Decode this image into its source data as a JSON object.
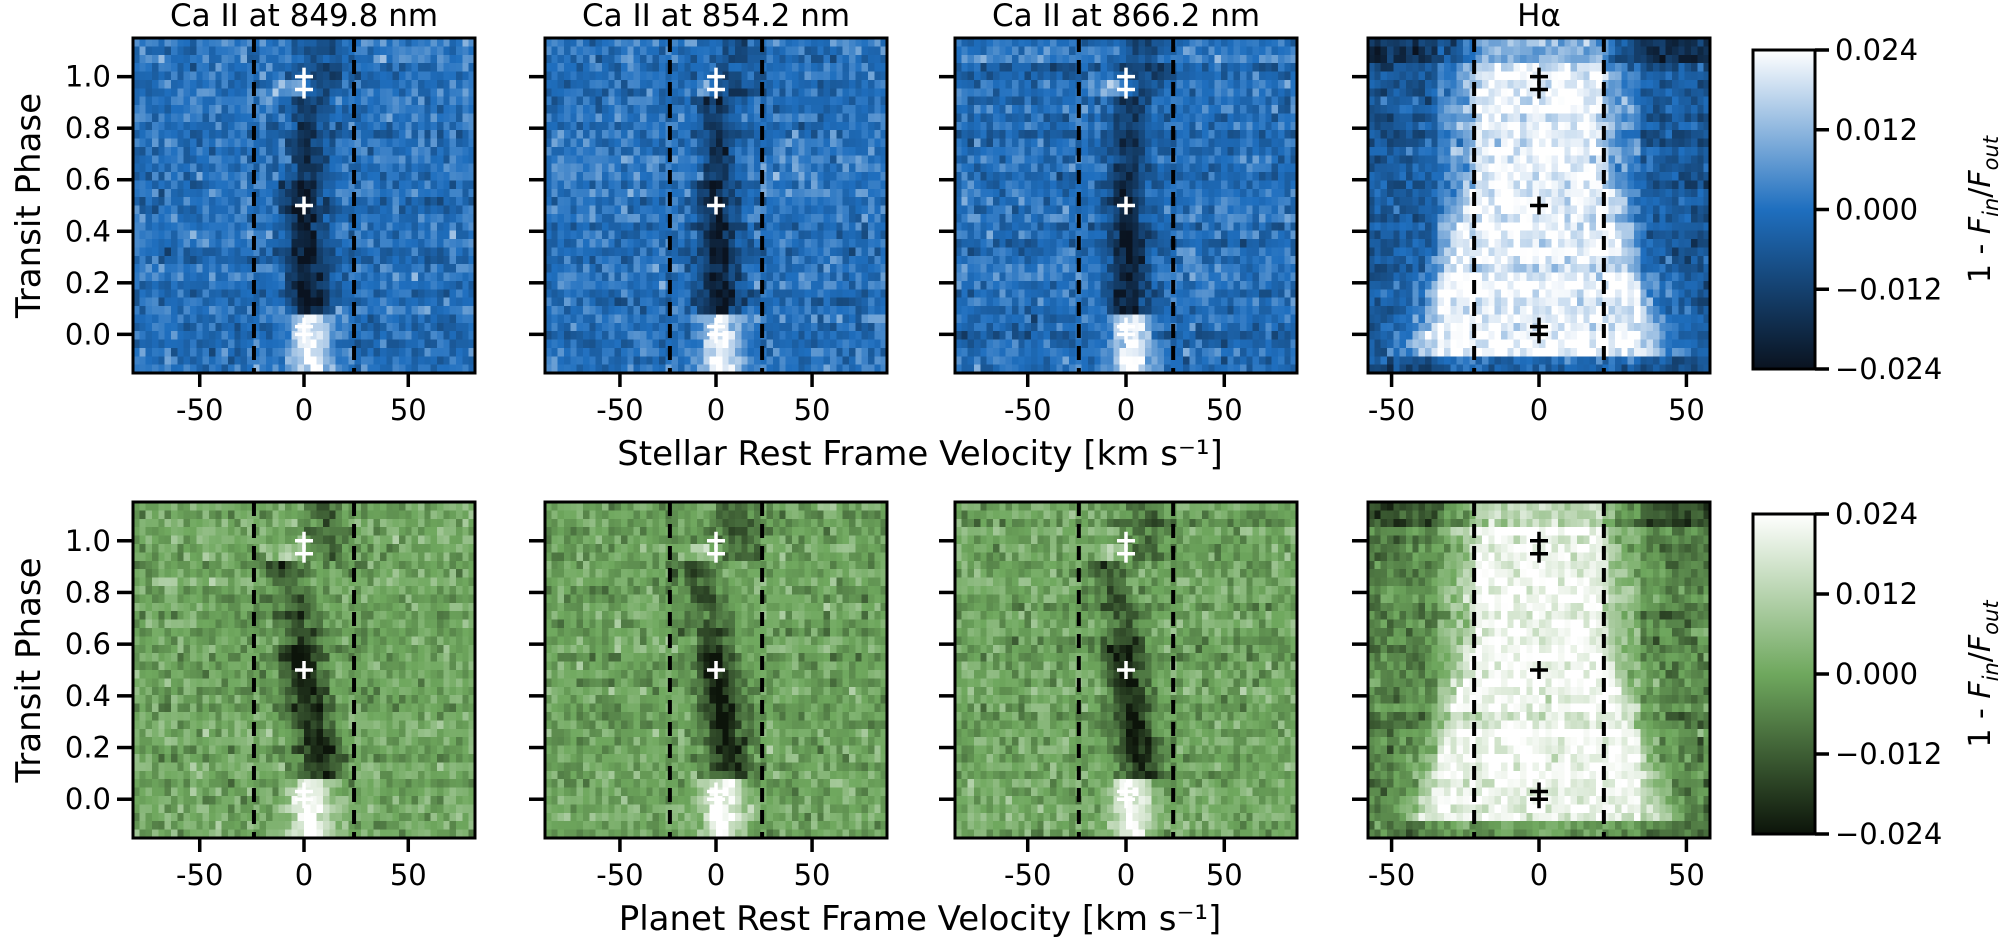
{
  "figure": {
    "colorbar_label": "1 - F_in/F_out",
    "colorbar_label_parts": {
      "prefix": "1 - ",
      "f_in": "F",
      "in_sub": "in",
      "slash": "/",
      "f_out": "F",
      "out_sub": "out"
    }
  },
  "chart_data": [
    {
      "type": "heatmap",
      "row": "stellar",
      "xlabel": "Stellar Rest Frame Velocity [km s⁻¹]",
      "ylabel": "Transit Phase",
      "colormap": "blues",
      "cmap_colors": [
        "#0a1320",
        "#1f6fbf",
        "#ffffff"
      ],
      "clim": [
        -0.024,
        0.024
      ],
      "colorbar_ticks": [
        "0.024",
        "0.012",
        "0.000",
        "−0.012",
        "−0.024"
      ],
      "yticks": [
        "0.0",
        "0.2",
        "0.4",
        "0.6",
        "0.8",
        "1.0"
      ],
      "panels": [
        {
          "title": "Ca II at 849.8 nm",
          "xlim": [
            -82,
            82
          ],
          "xticks": [
            "-50",
            "0",
            "50"
          ],
          "dashed_lines_x": [
            -24,
            24
          ],
          "marker_color": "#ffffff"
        },
        {
          "title": "Ca II at 854.2 nm",
          "xlim": [
            -89,
            89
          ],
          "xticks": [
            "-50",
            "0",
            "50"
          ],
          "dashed_lines_x": [
            -24,
            24
          ],
          "marker_color": "#ffffff"
        },
        {
          "title": "Ca II at 866.2 nm",
          "xlim": [
            -87,
            87
          ],
          "xticks": [
            "-50",
            "0",
            "50"
          ],
          "dashed_lines_x": [
            -24,
            24
          ],
          "marker_color": "#ffffff"
        },
        {
          "title": "Hα",
          "xlim": [
            -58,
            58
          ],
          "xticks": [
            "-50",
            "0",
            "50"
          ],
          "dashed_lines_x": [
            -22,
            22
          ],
          "marker_color": "#000000"
        }
      ],
      "markers": {
        "x": [
          0,
          0,
          0,
          0,
          0
        ],
        "y": [
          0.0,
          0.03,
          0.5,
          0.95,
          1.0
        ]
      }
    },
    {
      "type": "heatmap",
      "row": "planet",
      "xlabel": "Planet Rest Frame Velocity [km s⁻¹]",
      "ylabel": "Transit Phase",
      "colormap": "greens",
      "cmap_colors": [
        "#0c140a",
        "#6fa85e",
        "#ffffff"
      ],
      "clim": [
        -0.024,
        0.024
      ],
      "colorbar_ticks": [
        "0.024",
        "0.012",
        "0.000",
        "−0.012",
        "−0.024"
      ],
      "yticks": [
        "0.0",
        "0.2",
        "0.4",
        "0.6",
        "0.8",
        "1.0"
      ],
      "panels": [
        {
          "title": "",
          "xlim": [
            -82,
            82
          ],
          "xticks": [
            "-50",
            "0",
            "50"
          ],
          "dashed_lines_x": [
            -24,
            24
          ],
          "marker_color": "#ffffff"
        },
        {
          "title": "",
          "xlim": [
            -89,
            89
          ],
          "xticks": [
            "-50",
            "0",
            "50"
          ],
          "dashed_lines_x": [
            -24,
            24
          ],
          "marker_color": "#ffffff"
        },
        {
          "title": "",
          "xlim": [
            -87,
            87
          ],
          "xticks": [
            "-50",
            "0",
            "50"
          ],
          "dashed_lines_x": [
            -24,
            24
          ],
          "marker_color": "#ffffff"
        },
        {
          "title": "",
          "xlim": [
            -58,
            58
          ],
          "xticks": [
            "-50",
            "0",
            "50"
          ],
          "dashed_lines_x": [
            -22,
            22
          ],
          "marker_color": "#000000"
        }
      ],
      "markers": {
        "x": [
          0,
          0,
          0,
          0,
          0
        ],
        "y": [
          0.0,
          0.03,
          0.5,
          0.95,
          1.0
        ]
      }
    }
  ]
}
